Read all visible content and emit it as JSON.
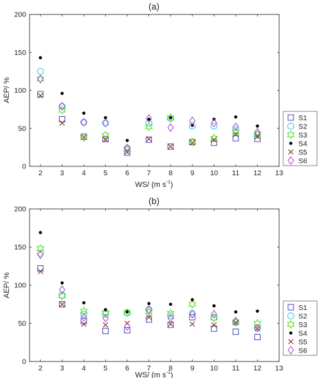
{
  "chart_data": [
    {
      "type": "scatter",
      "title": "(a)",
      "xlabel": "WS/ (m s",
      "xlabel_sup": "-1",
      "xlabel_close": ")",
      "ylabel": "AEP/ %",
      "xlim": [
        1.5,
        13
      ],
      "ylim": [
        0,
        200
      ],
      "xticks": [
        2,
        3,
        4,
        5,
        6,
        7,
        8,
        9,
        10,
        11,
        12,
        13
      ],
      "yticks": [
        0,
        50,
        100,
        150,
        200
      ],
      "grid": false,
      "legend_position": "right",
      "x": [
        2,
        3,
        4,
        5,
        6,
        7,
        8,
        9,
        10,
        11,
        12
      ],
      "series": [
        {
          "name": "S1",
          "marker": "square",
          "color": "#4a4ab8",
          "values": [
            95,
            62,
            39,
            36,
            18,
            35,
            26,
            32,
            31,
            37,
            36
          ]
        },
        {
          "name": "S2",
          "marker": "circle",
          "color": "#22c8e8",
          "values": [
            125,
            79,
            58,
            57,
            24,
            57,
            63,
            53,
            53,
            48,
            42
          ]
        },
        {
          "name": "S3",
          "marker": "hexagram",
          "color": "#55dd22",
          "values": [
            115,
            74,
            38,
            41,
            22,
            52,
            64,
            32,
            37,
            45,
            42
          ]
        },
        {
          "name": "S4",
          "marker": "dot",
          "color": "#000000",
          "values": [
            143,
            96,
            70,
            64,
            34,
            62,
            64,
            54,
            62,
            65,
            53
          ]
        },
        {
          "name": "S5",
          "marker": "x",
          "color": "#8b2a1a",
          "values": [
            93,
            57,
            38,
            35,
            19,
            36,
            26,
            31,
            35,
            42,
            39
          ]
        },
        {
          "name": "S6",
          "marker": "diamond",
          "color": "#b040d0",
          "values": [
            115,
            79,
            58,
            57,
            24,
            63,
            51,
            60,
            57,
            52,
            45
          ]
        }
      ]
    },
    {
      "type": "scatter",
      "title": "(b)",
      "xlabel": "WS/ (m s",
      "xlabel_sup": "-1",
      "xlabel_close": ")",
      "ylabel": "AEP/ %",
      "xlim": [
        1.5,
        13
      ],
      "ylim": [
        0,
        200
      ],
      "xticks": [
        2,
        3,
        4,
        5,
        6,
        7,
        8,
        9,
        10,
        11,
        12,
        13
      ],
      "yticks": [
        0,
        50,
        100,
        150,
        200
      ],
      "grid": false,
      "legend_position": "right",
      "x": [
        2,
        3,
        4,
        5,
        6,
        7,
        8,
        9,
        10,
        11,
        12
      ],
      "series": [
        {
          "name": "S1",
          "marker": "square",
          "color": "#4a4ab8",
          "values": [
            122,
            75,
            53,
            40,
            41,
            55,
            48,
            58,
            43,
            39,
            32
          ]
        },
        {
          "name": "S2",
          "marker": "circle",
          "color": "#22c8e8",
          "values": [
            142,
            87,
            62,
            62,
            64,
            68,
            60,
            63,
            58,
            51,
            44
          ]
        },
        {
          "name": "S3",
          "marker": "hexagram",
          "color": "#55dd22",
          "values": [
            148,
            86,
            66,
            64,
            64,
            65,
            63,
            75,
            57,
            52,
            50
          ]
        },
        {
          "name": "S4",
          "marker": "dot",
          "color": "#000000",
          "values": [
            169,
            103,
            77,
            68,
            65,
            76,
            75,
            81,
            73,
            65,
            66
          ]
        },
        {
          "name": "S5",
          "marker": "x",
          "color": "#8b2a1a",
          "values": [
            118,
            75,
            49,
            48,
            50,
            58,
            49,
            49,
            48,
            51,
            43
          ]
        },
        {
          "name": "S6",
          "marker": "diamond",
          "color": "#b040d0",
          "values": [
            140,
            94,
            58,
            57,
            46,
            68,
            57,
            62,
            62,
            53,
            44
          ]
        }
      ]
    }
  ]
}
